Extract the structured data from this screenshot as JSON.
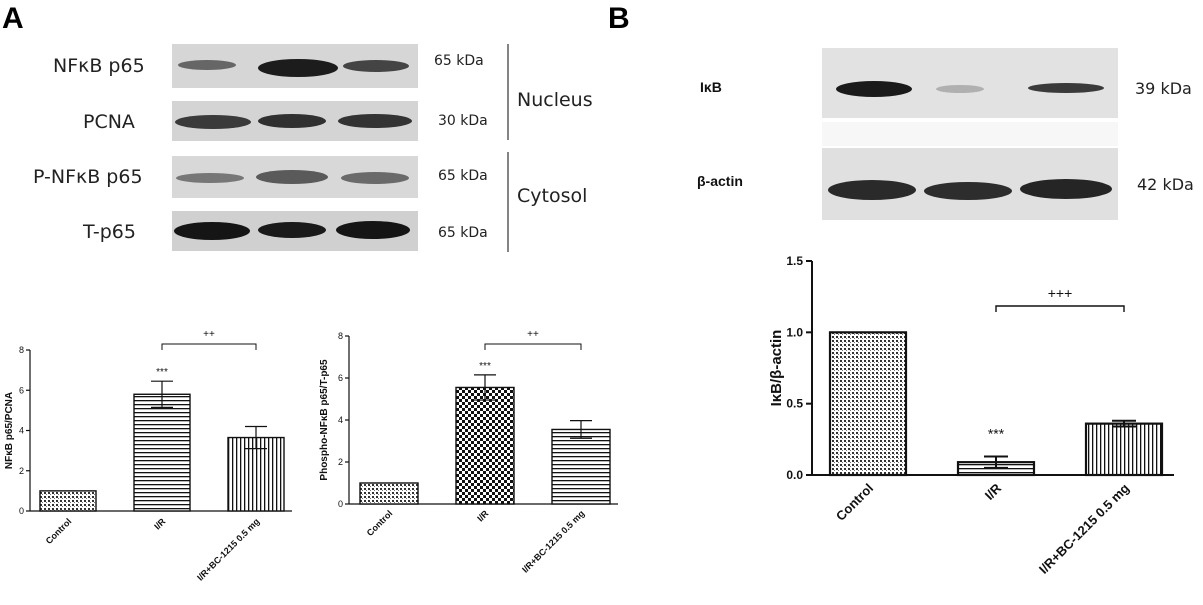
{
  "panel_a": {
    "letter": "A",
    "blot_rows": [
      {
        "label": "NFκB p65",
        "kda": "65 kDa"
      },
      {
        "label": "PCNA",
        "kda": "30 kDa"
      },
      {
        "label": "P-NFκB p65",
        "kda": "65 kDa"
      },
      {
        "label": "T-p65",
        "kda": "65 kDa"
      }
    ],
    "regions": [
      "Nucleus",
      "Cytosol"
    ]
  },
  "panel_b": {
    "letter": "B",
    "blot_rows": [
      {
        "label": "IκB",
        "kda": "39 kDa"
      },
      {
        "label": "β-actin",
        "kda": "42 kDa"
      }
    ]
  },
  "chart_data": [
    {
      "type": "bar",
      "categories": [
        "Control",
        "I/R",
        "I/R+BC-1215 0.5 mg"
      ],
      "values": [
        1.0,
        5.8,
        3.65
      ],
      "errors": [
        0,
        0.65,
        0.55
      ],
      "ylabel": "NFκB p65/PCNA",
      "ylim": [
        0,
        8
      ],
      "yticks": [
        "0",
        "2",
        "4",
        "6",
        "8"
      ],
      "patterns": [
        "dots",
        "hlines",
        "vlines"
      ],
      "annotations": [
        {
          "text": "***",
          "category": 1
        },
        {
          "text": "++",
          "from": 1,
          "to": 2
        }
      ]
    },
    {
      "type": "bar",
      "categories": [
        "Control",
        "I/R",
        "I/R+BC-1215 0.5 mg"
      ],
      "values": [
        1.0,
        5.55,
        3.55
      ],
      "errors": [
        0,
        0.6,
        0.42
      ],
      "ylabel": "Phospho-NFκB p65/T-p65",
      "ylim": [
        0,
        8
      ],
      "yticks": [
        "0",
        "2",
        "4",
        "6",
        "8"
      ],
      "patterns": [
        "dots",
        "checker",
        "hlines"
      ],
      "annotations": [
        {
          "text": "***",
          "category": 1
        },
        {
          "text": "++",
          "from": 1,
          "to": 2
        }
      ]
    },
    {
      "type": "bar",
      "categories": [
        "Control",
        "I/R",
        "I/R+BC-1215 0.5 mg"
      ],
      "values": [
        1.0,
        0.09,
        0.36
      ],
      "errors": [
        0,
        0.04,
        0.02
      ],
      "ylabel": "IκB/β-actin",
      "ylim": [
        0,
        1.5
      ],
      "yticks": [
        "0.0",
        "0.5",
        "1.0",
        "1.5"
      ],
      "patterns": [
        "dots",
        "hlines",
        "vlines"
      ],
      "annotations": [
        {
          "text": "***",
          "category": 1
        },
        {
          "text": "+++",
          "from": 1,
          "to": 2
        }
      ]
    }
  ]
}
